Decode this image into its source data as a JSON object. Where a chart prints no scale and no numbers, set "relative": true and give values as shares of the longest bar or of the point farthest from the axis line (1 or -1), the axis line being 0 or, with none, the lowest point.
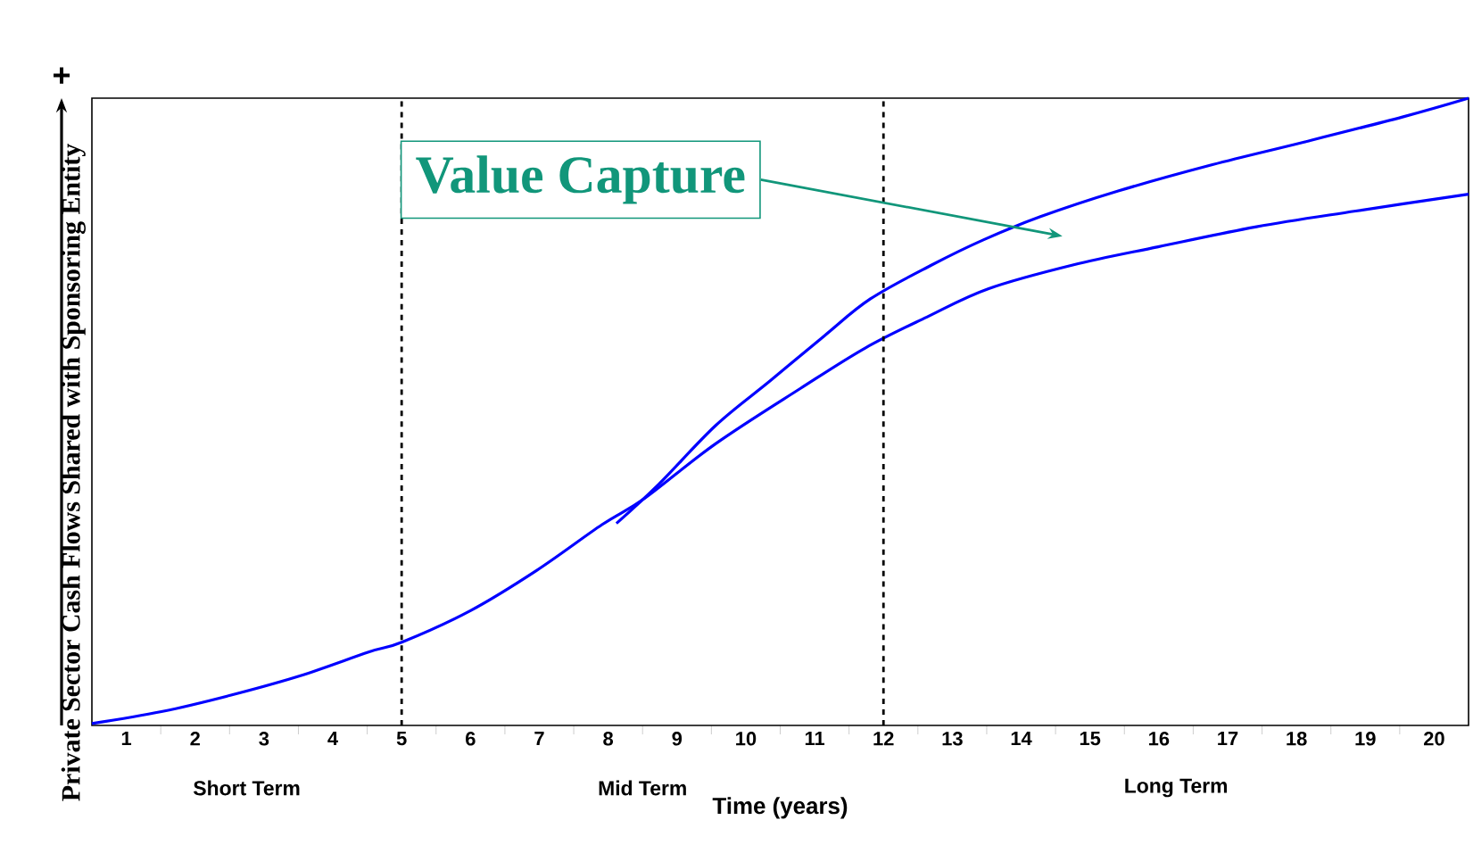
{
  "chart_data": {
    "type": "line",
    "relative": true,
    "xlabel": "Time (years)",
    "ylabel": "Private Sector Cash Flows Shared with Sponsoring Entity",
    "xlim": [
      0.5,
      20.5
    ],
    "xticks": [
      1,
      2,
      3,
      4,
      5,
      6,
      7,
      8,
      9,
      10,
      11,
      12,
      13,
      14,
      15,
      16,
      17,
      18,
      19,
      20
    ],
    "series": [
      {
        "color": "#0000ff",
        "x": [
          0.5,
          1.51,
          2.51,
          3.52,
          4.52,
          5.01,
          6.0,
          6.96,
          7.91,
          8.53,
          9.56,
          10.79,
          11.74,
          12.63,
          13.52,
          14.75,
          15.99,
          17.42,
          18.86,
          20.5
        ],
        "values": [
          0.003,
          0.022,
          0.048,
          0.079,
          0.117,
          0.133,
          0.183,
          0.247,
          0.32,
          0.362,
          0.449,
          0.537,
          0.602,
          0.651,
          0.696,
          0.734,
          0.763,
          0.795,
          0.82,
          0.847
        ]
      },
      {
        "color": "#0000ff",
        "x": [
          8.12,
          8.74,
          9.56,
          10.35,
          11.14,
          11.81,
          12.7,
          13.45,
          14.28,
          15.41,
          16.78,
          18.11,
          19.54,
          20.5
        ],
        "values": [
          0.322,
          0.385,
          0.478,
          0.549,
          0.621,
          0.68,
          0.734,
          0.774,
          0.811,
          0.852,
          0.894,
          0.93,
          0.97,
          1.0
        ]
      }
    ],
    "ref_lines": [
      {
        "axis": "x",
        "value": 5,
        "color": "#000000",
        "line_style": "dashed"
      },
      {
        "axis": "x",
        "value": 12,
        "color": "#000000",
        "line_style": "dashed"
      }
    ],
    "annotations": [
      "Short Term",
      "Mid Term",
      "Long Term",
      "Value Capture",
      "+"
    ],
    "grid": false,
    "marker": "none",
    "line_style": "solid"
  }
}
